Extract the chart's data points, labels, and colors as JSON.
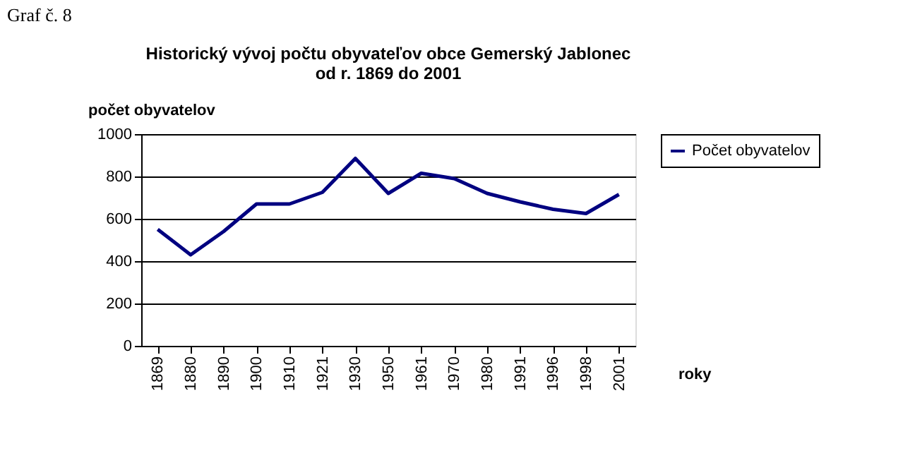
{
  "chart_data": {
    "type": "line",
    "title": [
      "Historický vývoj počtu obyvateľov obce Gemerský Jablonec",
      "od r. 1869 do 2001"
    ],
    "ylabel": "počet obyvatelov",
    "xlabel": "roky",
    "annotations": [
      "Graf č. 8"
    ],
    "categories": [
      "1869",
      "1880",
      "1890",
      "1900",
      "1910",
      "1921",
      "1930",
      "1950",
      "1961",
      "1970",
      "1980",
      "1991",
      "1996",
      "1998",
      "2001"
    ],
    "series": [
      {
        "name": "Počet obyvatelov",
        "color": "#000080",
        "values": [
          550,
          430,
          540,
          670,
          670,
          725,
          885,
          720,
          815,
          790,
          720,
          680,
          645,
          625,
          715
        ]
      }
    ],
    "ylim": [
      0,
      1000
    ],
    "yticks": [
      0,
      200,
      400,
      600,
      800,
      1000
    ],
    "grid": "y",
    "legend": "right",
    "marker": "none",
    "line_style": "solid"
  }
}
